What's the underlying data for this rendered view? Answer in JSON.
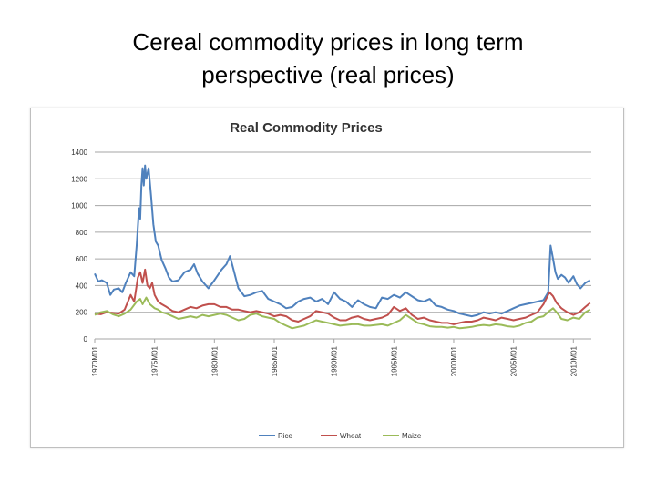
{
  "slide": {
    "title_line1": "Cereal commodity prices in long term",
    "title_line2": "perspective (real prices)"
  },
  "chart_data": {
    "type": "line",
    "title": "Real Commodity Prices",
    "xlabel": "",
    "ylabel": "",
    "x_start_year": 1970,
    "x_end_year": 2011.5,
    "ylim": [
      0,
      1400
    ],
    "yticks": [
      0,
      200,
      400,
      600,
      800,
      1000,
      1200,
      1400
    ],
    "xtick_labels": [
      "1970M01",
      "1975M01",
      "1980M01",
      "1985M01",
      "1990M01",
      "1995M01",
      "2000M01",
      "2005M01",
      "2010M01"
    ],
    "xtick_years": [
      1970,
      1975,
      1980,
      1985,
      1990,
      1995,
      2000,
      2005,
      2010
    ],
    "grid": true,
    "legend_position": "bottom",
    "series": [
      {
        "name": "Rice",
        "color": "#4f81bd",
        "x": [
          1970.0,
          1970.3,
          1970.6,
          1971.0,
          1971.3,
          1971.6,
          1972.0,
          1972.3,
          1972.6,
          1973.0,
          1973.3,
          1973.5,
          1973.7,
          1973.8,
          1973.9,
          1974.0,
          1974.1,
          1974.2,
          1974.3,
          1974.5,
          1974.7,
          1974.9,
          1975.1,
          1975.3,
          1975.6,
          1975.9,
          1976.2,
          1976.5,
          1977.0,
          1977.5,
          1978.0,
          1978.3,
          1978.6,
          1979.0,
          1979.5,
          1980.0,
          1980.3,
          1980.6,
          1981.0,
          1981.3,
          1981.6,
          1982.0,
          1982.5,
          1983.0,
          1983.5,
          1984.0,
          1984.5,
          1985.0,
          1985.5,
          1986.0,
          1986.5,
          1987.0,
          1987.5,
          1988.0,
          1988.5,
          1989.0,
          1989.5,
          1990.0,
          1990.5,
          1991.0,
          1991.5,
          1992.0,
          1992.5,
          1993.0,
          1993.5,
          1994.0,
          1994.5,
          1995.0,
          1995.5,
          1996.0,
          1996.5,
          1997.0,
          1997.5,
          1998.0,
          1998.5,
          1999.0,
          1999.5,
          2000.0,
          2000.5,
          2001.0,
          2001.5,
          2002.0,
          2002.5,
          2003.0,
          2003.5,
          2004.0,
          2004.5,
          2005.0,
          2005.5,
          2006.0,
          2006.5,
          2007.0,
          2007.5,
          2007.9,
          2008.1,
          2008.3,
          2008.5,
          2008.7,
          2009.0,
          2009.3,
          2009.6,
          2010.0,
          2010.3,
          2010.6,
          2011.0,
          2011.4
        ],
        "values": [
          490,
          430,
          440,
          420,
          330,
          370,
          380,
          350,
          420,
          500,
          470,
          700,
          980,
          900,
          1150,
          1280,
          1150,
          1300,
          1200,
          1280,
          1080,
          860,
          730,
          700,
          590,
          530,
          460,
          430,
          440,
          500,
          520,
          560,
          490,
          430,
          380,
          440,
          480,
          520,
          560,
          620,
          520,
          380,
          320,
          330,
          350,
          360,
          300,
          280,
          260,
          230,
          240,
          280,
          300,
          310,
          280,
          300,
          260,
          350,
          300,
          280,
          240,
          290,
          260,
          240,
          230,
          310,
          300,
          330,
          310,
          350,
          320,
          290,
          280,
          300,
          250,
          240,
          220,
          210,
          190,
          180,
          170,
          180,
          200,
          190,
          200,
          190,
          210,
          230,
          250,
          260,
          270,
          280,
          290,
          350,
          700,
          600,
          500,
          450,
          480,
          460,
          420,
          470,
          410,
          380,
          420,
          440
        ]
      },
      {
        "name": "Wheat",
        "color": "#c0504d",
        "x": [
          1970.0,
          1970.5,
          1971.0,
          1971.5,
          1972.0,
          1972.5,
          1973.0,
          1973.3,
          1973.6,
          1973.8,
          1974.0,
          1974.2,
          1974.4,
          1974.6,
          1974.8,
          1975.0,
          1975.3,
          1975.6,
          1976.0,
          1976.5,
          1977.0,
          1977.5,
          1978.0,
          1978.5,
          1979.0,
          1979.5,
          1980.0,
          1980.5,
          1981.0,
          1981.5,
          1982.0,
          1982.5,
          1983.0,
          1983.5,
          1984.0,
          1984.5,
          1985.0,
          1985.5,
          1986.0,
          1986.5,
          1987.0,
          1987.5,
          1988.0,
          1988.5,
          1989.0,
          1989.5,
          1990.0,
          1990.5,
          1991.0,
          1991.5,
          1992.0,
          1992.5,
          1993.0,
          1993.5,
          1994.0,
          1994.5,
          1995.0,
          1995.5,
          1996.0,
          1996.5,
          1997.0,
          1997.5,
          1998.0,
          1998.5,
          1999.0,
          1999.5,
          2000.0,
          2000.5,
          2001.0,
          2001.5,
          2002.0,
          2002.5,
          2003.0,
          2003.5,
          2004.0,
          2004.5,
          2005.0,
          2005.5,
          2006.0,
          2006.5,
          2007.0,
          2007.5,
          2008.0,
          2008.3,
          2008.6,
          2009.0,
          2009.5,
          2010.0,
          2010.5,
          2011.0,
          2011.4
        ],
        "values": [
          190,
          185,
          200,
          195,
          190,
          220,
          330,
          280,
          460,
          500,
          420,
          520,
          400,
          380,
          420,
          330,
          280,
          260,
          240,
          210,
          200,
          220,
          240,
          230,
          250,
          260,
          260,
          240,
          240,
          220,
          220,
          210,
          200,
          210,
          200,
          190,
          170,
          180,
          170,
          140,
          130,
          150,
          170,
          210,
          200,
          190,
          160,
          140,
          140,
          160,
          170,
          150,
          140,
          150,
          160,
          180,
          240,
          210,
          230,
          180,
          150,
          160,
          140,
          130,
          120,
          120,
          110,
          120,
          130,
          130,
          140,
          160,
          150,
          140,
          160,
          150,
          140,
          150,
          160,
          180,
          200,
          260,
          350,
          320,
          270,
          230,
          200,
          180,
          200,
          240,
          270
        ]
      },
      {
        "name": "Maize",
        "color": "#9bbb59",
        "x": [
          1970.0,
          1970.5,
          1971.0,
          1971.5,
          1972.0,
          1972.5,
          1973.0,
          1973.5,
          1973.8,
          1974.0,
          1974.3,
          1974.6,
          1975.0,
          1975.3,
          1975.6,
          1976.0,
          1976.5,
          1977.0,
          1977.5,
          1978.0,
          1978.5,
          1979.0,
          1979.5,
          1980.0,
          1980.5,
          1981.0,
          1981.5,
          1982.0,
          1982.5,
          1983.0,
          1983.5,
          1984.0,
          1984.5,
          1985.0,
          1985.5,
          1986.0,
          1986.5,
          1987.0,
          1987.5,
          1988.0,
          1988.5,
          1989.0,
          1989.5,
          1990.0,
          1990.5,
          1991.0,
          1991.5,
          1992.0,
          1992.5,
          1993.0,
          1993.5,
          1994.0,
          1994.5,
          1995.0,
          1995.5,
          1996.0,
          1996.5,
          1997.0,
          1997.5,
          1998.0,
          1998.5,
          1999.0,
          1999.5,
          2000.0,
          2000.5,
          2001.0,
          2001.5,
          2002.0,
          2002.5,
          2003.0,
          2003.5,
          2004.0,
          2004.5,
          2005.0,
          2005.5,
          2006.0,
          2006.5,
          2007.0,
          2007.5,
          2008.0,
          2008.3,
          2008.6,
          2009.0,
          2009.5,
          2010.0,
          2010.5,
          2011.0,
          2011.4
        ],
        "values": [
          180,
          200,
          210,
          185,
          170,
          190,
          220,
          280,
          300,
          260,
          310,
          260,
          230,
          220,
          200,
          190,
          170,
          150,
          160,
          170,
          160,
          180,
          170,
          180,
          190,
          180,
          160,
          140,
          150,
          180,
          190,
          170,
          160,
          150,
          120,
          100,
          80,
          90,
          100,
          120,
          140,
          130,
          120,
          110,
          100,
          105,
          110,
          110,
          100,
          100,
          105,
          110,
          100,
          120,
          140,
          180,
          150,
          120,
          110,
          95,
          90,
          90,
          85,
          90,
          80,
          85,
          90,
          100,
          105,
          100,
          110,
          105,
          95,
          90,
          100,
          120,
          130,
          160,
          170,
          210,
          230,
          200,
          150,
          140,
          160,
          150,
          200,
          220
        ]
      }
    ]
  }
}
